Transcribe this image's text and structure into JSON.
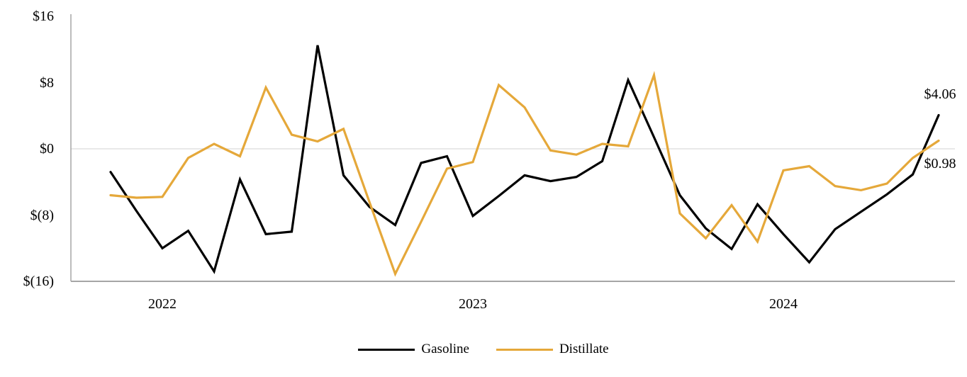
{
  "chart_data": {
    "type": "line",
    "title": "",
    "x": [
      "2021-11",
      "2021-12",
      "2022-01",
      "2022-02",
      "2022-03",
      "2022-04",
      "2022-05",
      "2022-06",
      "2022-07",
      "2022-08",
      "2022-09",
      "2022-10",
      "2022-11",
      "2022-12",
      "2023-01",
      "2023-02",
      "2023-03",
      "2023-04",
      "2023-05",
      "2023-06",
      "2023-07",
      "2023-08",
      "2023-09",
      "2023-10",
      "2023-11",
      "2023-12",
      "2024-01",
      "2024-02",
      "2024-03",
      "2024-04",
      "2024-05",
      "2024-06",
      "2024-07"
    ],
    "x_year_labels": [
      {
        "text": "2022",
        "month_index": 2
      },
      {
        "text": "2023",
        "month_index": 14
      },
      {
        "text": "2024",
        "month_index": 26
      }
    ],
    "y_axis": {
      "min": -16,
      "max": 16,
      "tick_values": [
        16,
        8,
        0,
        -8,
        -16
      ],
      "tick_labels": [
        "$16",
        "$8",
        "$0",
        "$(8)",
        "$(16)"
      ]
    },
    "gridline_values": [
      0
    ],
    "legend_position": "bottom-center",
    "series": [
      {
        "name": "Gasoline",
        "color": "#000000",
        "end_label": "$4.06",
        "values": [
          -2.8,
          -7.5,
          -12.0,
          -9.9,
          -14.8,
          -3.7,
          -10.3,
          -10.0,
          12.5,
          -3.2,
          -7.0,
          -9.2,
          -1.7,
          -0.9,
          -8.1,
          -5.7,
          -3.2,
          -3.9,
          -3.4,
          -1.5,
          8.3,
          1.4,
          -5.6,
          -9.6,
          -12.1,
          -6.7,
          -10.3,
          -13.7,
          -9.7,
          -7.6,
          -5.5,
          -3.1,
          4.06
        ]
      },
      {
        "name": "Distillate",
        "color": "#E5A83A",
        "end_label": "$0.98",
        "values": [
          -5.6,
          -5.9,
          -5.8,
          -1.1,
          0.6,
          -0.9,
          7.4,
          1.7,
          0.9,
          2.4,
          -6.4,
          -15.1,
          -8.8,
          -2.4,
          -1.6,
          7.7,
          5.0,
          -0.2,
          -0.7,
          0.6,
          0.3,
          8.9,
          -7.8,
          -10.8,
          -6.8,
          -11.2,
          -2.6,
          -2.1,
          -4.5,
          -5.0,
          -4.2,
          -1.1,
          0.98
        ]
      }
    ],
    "colors": {
      "axis": "#A6A6A6",
      "gridline": "#DCDCDC",
      "background": "#FFFFFF"
    }
  }
}
